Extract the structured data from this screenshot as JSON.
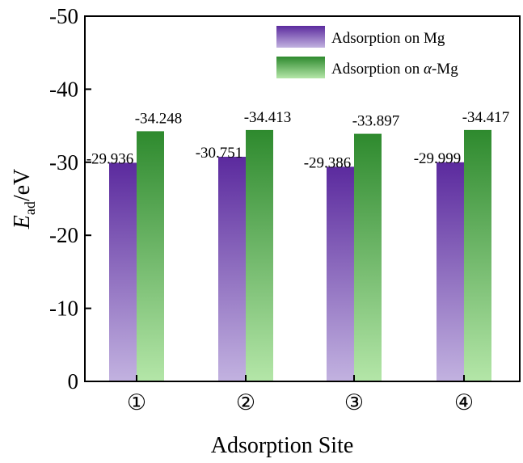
{
  "chart_data": {
    "type": "bar",
    "xlabel": "Adsorption Site",
    "ylabel": {
      "main": "E",
      "sub": "ad",
      "unit": "/eV"
    },
    "categories": [
      "①",
      "②",
      "③",
      "④"
    ],
    "series": [
      {
        "name": "Adsorption on Mg",
        "values": [
          -29.936,
          -30.751,
          -29.386,
          -29.999
        ],
        "labels": [
          "-29.936",
          "-30.751",
          "-29.386",
          "-29.999"
        ],
        "color_top": "#5b2a9e",
        "color_bottom": "#c2b2e0"
      },
      {
        "name_prefix": "Adsorption on ",
        "name_symbol": "α",
        "name_suffix": "-Mg",
        "values": [
          -34.248,
          -34.413,
          -33.897,
          -34.417
        ],
        "labels": [
          "-34.248",
          "-34.413",
          "-33.897",
          "-34.417"
        ],
        "color_top": "#2e8a2e",
        "color_bottom": "#b4e6a8"
      }
    ],
    "ylim": [
      0,
      -50
    ],
    "y_ticks": [
      0,
      -10,
      -20,
      -30,
      -40,
      -50
    ],
    "y_tick_labels": [
      "0",
      "-10",
      "-20",
      "-30",
      "-40",
      "-50"
    ],
    "y_axis_inverted": true,
    "grid": false,
    "legend_position": "top-right"
  }
}
